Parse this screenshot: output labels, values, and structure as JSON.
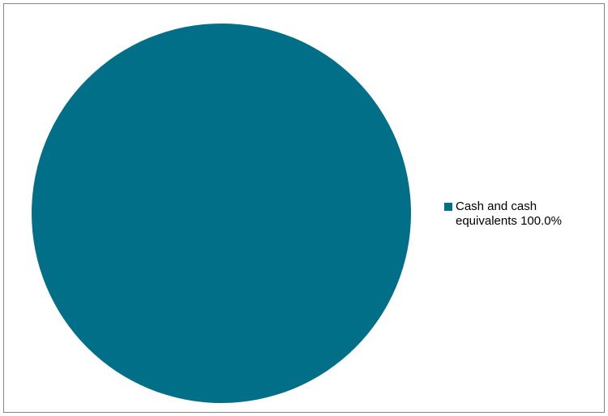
{
  "chart_data": {
    "type": "pie",
    "title": "",
    "series": [
      {
        "values": [
          100.0
        ]
      }
    ],
    "categories": [
      "Cash and cash equivalents"
    ],
    "slices": [
      {
        "label": "Cash and cash equivalents",
        "value": 100.0,
        "display": "100.0%",
        "color": "#006f87"
      }
    ],
    "legend": {
      "position": "right",
      "entries": [
        {
          "label": "Cash and cash equivalents",
          "value_text": "100.0%"
        }
      ]
    }
  },
  "colors": {
    "slice_primary": "#006f87",
    "frame_border": "#868686"
  }
}
